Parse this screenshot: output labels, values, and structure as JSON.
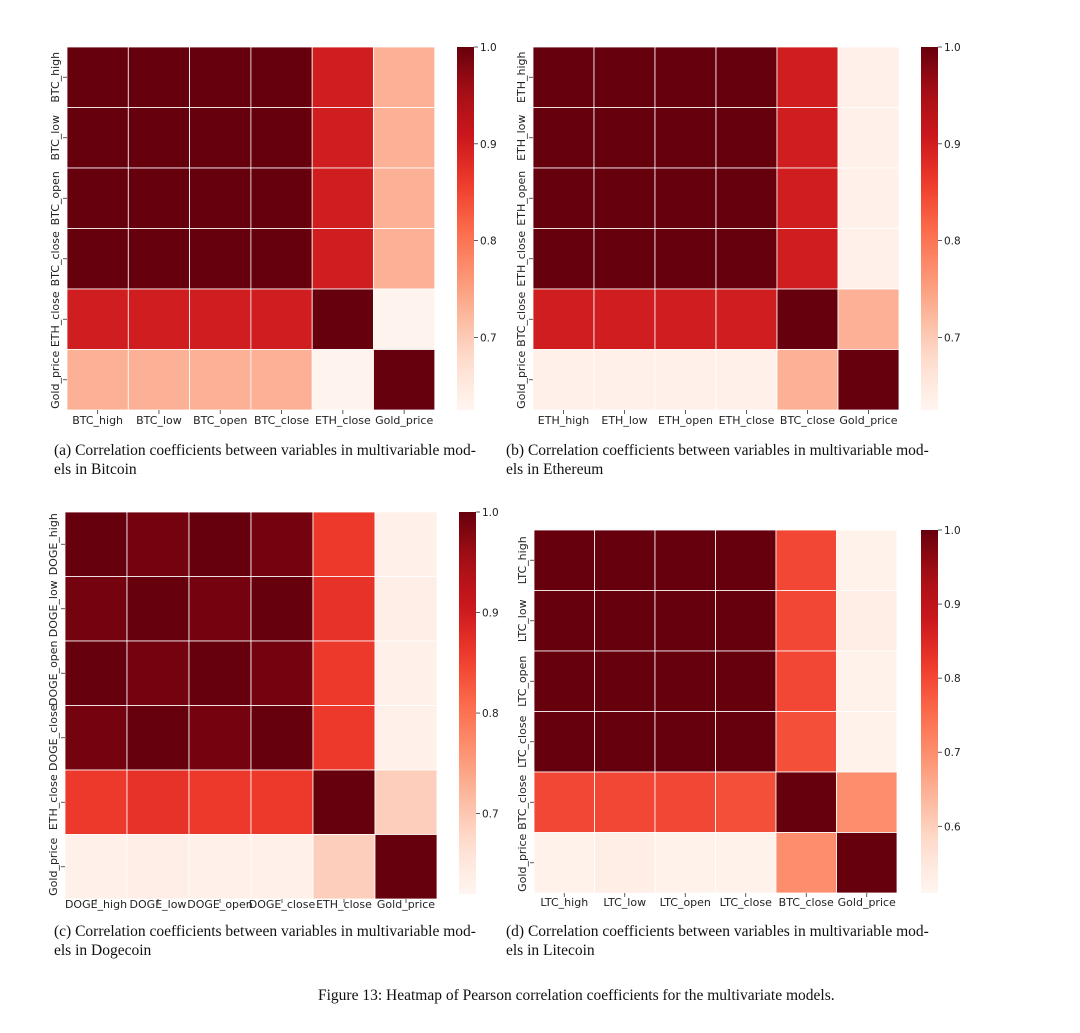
{
  "chart_data": [
    {
      "type": "heatmap",
      "rows": [
        "BTC_high",
        "BTC_low",
        "BTC_open",
        "BTC_close",
        "ETH_close",
        "Gold_price"
      ],
      "columns": [
        "BTC_high",
        "BTC_low",
        "BTC_open",
        "BTC_close",
        "ETH_close",
        "Gold_price"
      ],
      "values": [
        [
          1.0,
          1.0,
          1.0,
          1.0,
          0.9,
          0.73
        ],
        [
          1.0,
          1.0,
          1.0,
          1.0,
          0.9,
          0.73
        ],
        [
          1.0,
          1.0,
          1.0,
          1.0,
          0.9,
          0.73
        ],
        [
          1.0,
          1.0,
          1.0,
          1.0,
          0.9,
          0.73
        ],
        [
          0.9,
          0.9,
          0.9,
          0.9,
          1.0,
          0.63
        ],
        [
          0.73,
          0.73,
          0.73,
          0.73,
          0.63,
          1.0
        ]
      ],
      "colorbar": {
        "vmin": 0.625,
        "vmax": 1.0,
        "ticks": [
          "0.7",
          "0.8",
          "0.9",
          "1.0"
        ]
      }
    },
    {
      "type": "heatmap",
      "rows": [
        "ETH_high",
        "ETH_low",
        "ETH_open",
        "ETH_close",
        "BTC_close",
        "Gold_price"
      ],
      "columns": [
        "ETH_high",
        "ETH_low",
        "ETH_open",
        "ETH_close",
        "BTC_close",
        "Gold_price"
      ],
      "values": [
        [
          1.0,
          1.0,
          1.0,
          1.0,
          0.9,
          0.635
        ],
        [
          1.0,
          1.0,
          1.0,
          1.0,
          0.9,
          0.635
        ],
        [
          1.0,
          1.0,
          1.0,
          1.0,
          0.9,
          0.635
        ],
        [
          1.0,
          1.0,
          1.0,
          1.0,
          0.9,
          0.635
        ],
        [
          0.9,
          0.9,
          0.9,
          0.9,
          1.0,
          0.73
        ],
        [
          0.635,
          0.635,
          0.635,
          0.635,
          0.73,
          1.0
        ]
      ],
      "colorbar": {
        "vmin": 0.625,
        "vmax": 1.0,
        "ticks": [
          "0.7",
          "0.8",
          "0.9",
          "1.0"
        ]
      }
    },
    {
      "type": "heatmap",
      "rows": [
        "DOGE_high",
        "DOGE_low",
        "DOGE_open",
        "DOGE_close",
        "ETH_close",
        "Gold_price"
      ],
      "columns": [
        "DOGE_high",
        "DOGE_low",
        "DOGE_open",
        "DOGE_close",
        "ETH_close",
        "Gold_price"
      ],
      "values": [
        [
          1.0,
          0.99,
          1.0,
          0.99,
          0.86,
          0.63
        ],
        [
          0.99,
          1.0,
          0.99,
          1.0,
          0.87,
          0.635
        ],
        [
          1.0,
          0.99,
          1.0,
          0.99,
          0.86,
          0.63
        ],
        [
          0.99,
          1.0,
          0.99,
          1.0,
          0.86,
          0.63
        ],
        [
          0.86,
          0.87,
          0.86,
          0.86,
          1.0,
          0.69
        ],
        [
          0.63,
          0.635,
          0.63,
          0.63,
          0.69,
          1.0
        ]
      ],
      "colorbar": {
        "vmin": 0.62,
        "vmax": 1.0,
        "ticks": [
          "0.7",
          "0.8",
          "0.9",
          "1.0"
        ]
      }
    },
    {
      "type": "heatmap",
      "rows": [
        "LTC_high",
        "LTC_low",
        "LTC_open",
        "LTC_close",
        "BTC_close",
        "Gold_price"
      ],
      "columns": [
        "LTC_high",
        "LTC_low",
        "LTC_open",
        "LTC_close",
        "BTC_close",
        "Gold_price"
      ],
      "values": [
        [
          1.0,
          1.0,
          1.0,
          1.0,
          0.8,
          0.52
        ],
        [
          1.0,
          1.0,
          1.0,
          1.0,
          0.8,
          0.53
        ],
        [
          1.0,
          1.0,
          1.0,
          1.0,
          0.8,
          0.52
        ],
        [
          1.0,
          1.0,
          1.0,
          1.0,
          0.79,
          0.52
        ],
        [
          0.8,
          0.8,
          0.8,
          0.79,
          1.0,
          0.7
        ],
        [
          0.52,
          0.53,
          0.52,
          0.52,
          0.7,
          1.0
        ]
      ],
      "colorbar": {
        "vmin": 0.51,
        "vmax": 1.0,
        "ticks": [
          "0.6",
          "0.7",
          "0.8",
          "0.9",
          "1.0"
        ]
      }
    }
  ],
  "captions": {
    "a_line1": "(a) Correlation coefficients between variables in multivariable mod-",
    "a_line2": "els in Bitcoin",
    "b_line1": "(b) Correlation coefficients between variables in multivariable mod-",
    "b_line2": "els in Ethereum",
    "c_line1": "(c) Correlation coefficients between variables in multivariable mod-",
    "c_line2": "els in Dogecoin",
    "d_line1": "(d) Correlation coefficients between variables in multivariable mod-",
    "d_line2": "els in Litecoin",
    "figure": "Figure 13: Heatmap of Pearson correlation coefficients for the multivariate models."
  },
  "colors": {
    "colormap": "Reds",
    "cell_border": "#ffffff"
  }
}
